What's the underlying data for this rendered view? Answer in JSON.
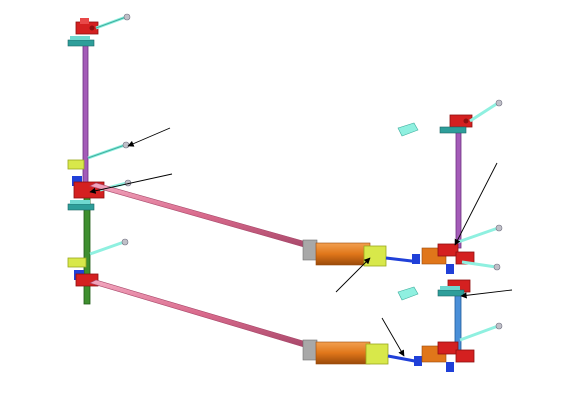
{
  "diagram": {
    "kind": "isometric mechanical assembly",
    "labels": [],
    "colors": {
      "background": "#ffffff",
      "rod_pink": "#d96a8c",
      "rod_pink_dark": "#b04a6c",
      "post_purple": "#a45cb8",
      "post_green": "#3f8f2f",
      "post_blue": "#4a8fd8",
      "clamp_red": "#d42020",
      "clamp_red_dark": "#8e1010",
      "bracket_teal": "#2e9e9a",
      "bracket_teal_light": "#6fd8d0",
      "block_yellow": "#d8e84a",
      "block_yellow_dark": "#9aa81e",
      "cylinder_orange": "#e0761a",
      "cylinder_orange_dark": "#a4500c",
      "end_gray": "#a8a8a8",
      "pin_cyan": "#8ff0e0",
      "bolt_gray": "#c0c0c8",
      "callout_line": "#000000"
    }
  }
}
